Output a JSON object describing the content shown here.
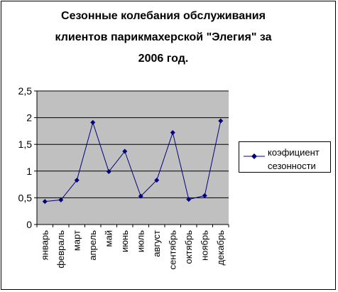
{
  "chart_data": {
    "type": "line",
    "title_lines": [
      "Сезонные колебания обслуживания",
      "клиентов парикмахерской \"Элегия\" за",
      "2006 год."
    ],
    "categories": [
      "январь",
      "февраль",
      "март",
      "апрель",
      "май",
      "июнь",
      "июль",
      "август",
      "сентябрь",
      "октябрь",
      "ноябрь",
      "декабрь"
    ],
    "series": [
      {
        "name_lines": [
          "коэфициент",
          "сезонности"
        ],
        "values": [
          0.43,
          0.46,
          0.83,
          1.91,
          0.99,
          1.37,
          0.53,
          0.83,
          1.72,
          0.47,
          0.54,
          1.94
        ]
      }
    ],
    "ylim": [
      0,
      2.5
    ],
    "yticks": [
      "0",
      "0,5",
      "1",
      "1,5",
      "2",
      "2,5"
    ],
    "grid": true,
    "legend_position": "right",
    "colors": {
      "plot_bg": "#c0c0c0",
      "line": "#000080",
      "marker": "#000080",
      "grid": "#000000"
    }
  }
}
